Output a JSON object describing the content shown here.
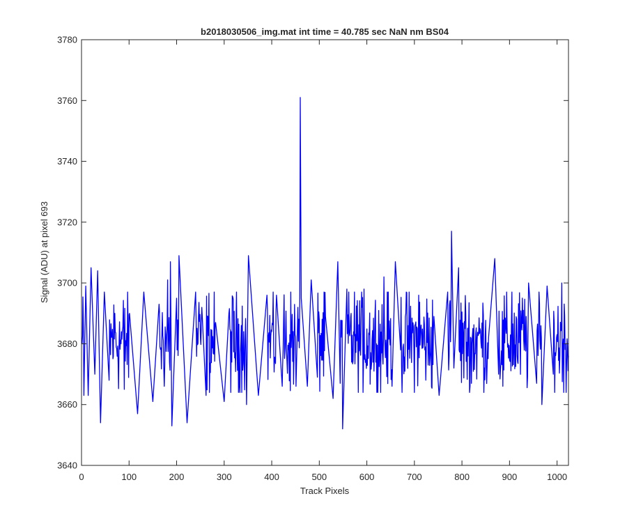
{
  "chart_data": {
    "type": "line",
    "title": "b2018030506_img.mat int time = 40.785 sec  NaN nm BS04",
    "xlabel": "Track Pixels",
    "ylabel": "Signal (ADU) at pixel 693",
    "xlim": [
      0,
      1024
    ],
    "ylim": [
      3640,
      3780
    ],
    "xticks": [
      0,
      100,
      200,
      300,
      400,
      500,
      600,
      700,
      800,
      900,
      1000
    ],
    "yticks": [
      3640,
      3660,
      3680,
      3700,
      3720,
      3740,
      3760,
      3780
    ],
    "grid": false,
    "legend": "none",
    "series": [
      {
        "color": "#0000ff",
        "keypoints": [
          [
            1,
            3680
          ],
          [
            5,
            3663
          ],
          [
            9,
            3699
          ],
          [
            14,
            3663
          ],
          [
            20,
            3705
          ],
          [
            28,
            3670
          ],
          [
            34,
            3704
          ],
          [
            40,
            3654
          ],
          [
            48,
            3697
          ],
          [
            58,
            3668
          ],
          [
            70,
            3690
          ],
          [
            90,
            3665
          ],
          [
            101,
            3690
          ],
          [
            118,
            3657
          ],
          [
            131,
            3697
          ],
          [
            150,
            3661
          ],
          [
            163,
            3693
          ],
          [
            181,
            3701
          ],
          [
            187,
            3707
          ],
          [
            190,
            3653
          ],
          [
            200,
            3695
          ],
          [
            205,
            3709
          ],
          [
            222,
            3654
          ],
          [
            240,
            3697
          ],
          [
            253,
            3692
          ],
          [
            262,
            3663
          ],
          [
            282,
            3687
          ],
          [
            300,
            3661
          ],
          [
            310,
            3690
          ],
          [
            341,
            3684
          ],
          [
            347,
            3660
          ],
          [
            351,
            3709
          ],
          [
            372,
            3663
          ],
          [
            390,
            3696
          ],
          [
            400,
            3684
          ],
          [
            410,
            3696
          ],
          [
            422,
            3666
          ],
          [
            438,
            3683
          ],
          [
            451,
            3666
          ],
          [
            455,
            3692
          ],
          [
            459,
            3694
          ],
          [
            460,
            3761
          ],
          [
            462,
            3695
          ],
          [
            475,
            3666
          ],
          [
            483,
            3701
          ],
          [
            496,
            3669
          ],
          [
            500,
            3688
          ],
          [
            513,
            3689
          ],
          [
            529,
            3662
          ],
          [
            539,
            3707
          ],
          [
            544,
            3667
          ],
          [
            549,
            3652
          ],
          [
            558,
            3698
          ],
          [
            567,
            3690
          ],
          [
            579,
            3681
          ],
          [
            594,
            3698
          ],
          [
            605,
            3683
          ],
          [
            620,
            3680
          ],
          [
            636,
            3702
          ],
          [
            648,
            3682
          ],
          [
            653,
            3666
          ],
          [
            660,
            3707
          ],
          [
            671,
            3678
          ],
          [
            691,
            3683
          ],
          [
            709,
            3696
          ],
          [
            729,
            3673
          ],
          [
            741,
            3689
          ],
          [
            752,
            3663
          ],
          [
            770,
            3697
          ],
          [
            778,
            3717
          ],
          [
            783,
            3672
          ],
          [
            793,
            3705
          ],
          [
            806,
            3685
          ],
          [
            820,
            3667
          ],
          [
            838,
            3685
          ],
          [
            856,
            3682
          ],
          [
            869,
            3708
          ],
          [
            877,
            3670
          ],
          [
            886,
            3666
          ],
          [
            897,
            3680
          ],
          [
            905,
            3697
          ],
          [
            917,
            3674
          ],
          [
            929,
            3691
          ],
          [
            940,
            3700
          ],
          [
            957,
            3667
          ],
          [
            968,
            3660
          ],
          [
            979,
            3699
          ],
          [
            992,
            3670
          ],
          [
            1000,
            3683
          ],
          [
            1010,
            3700
          ],
          [
            1024,
            3676
          ]
        ]
      }
    ]
  }
}
